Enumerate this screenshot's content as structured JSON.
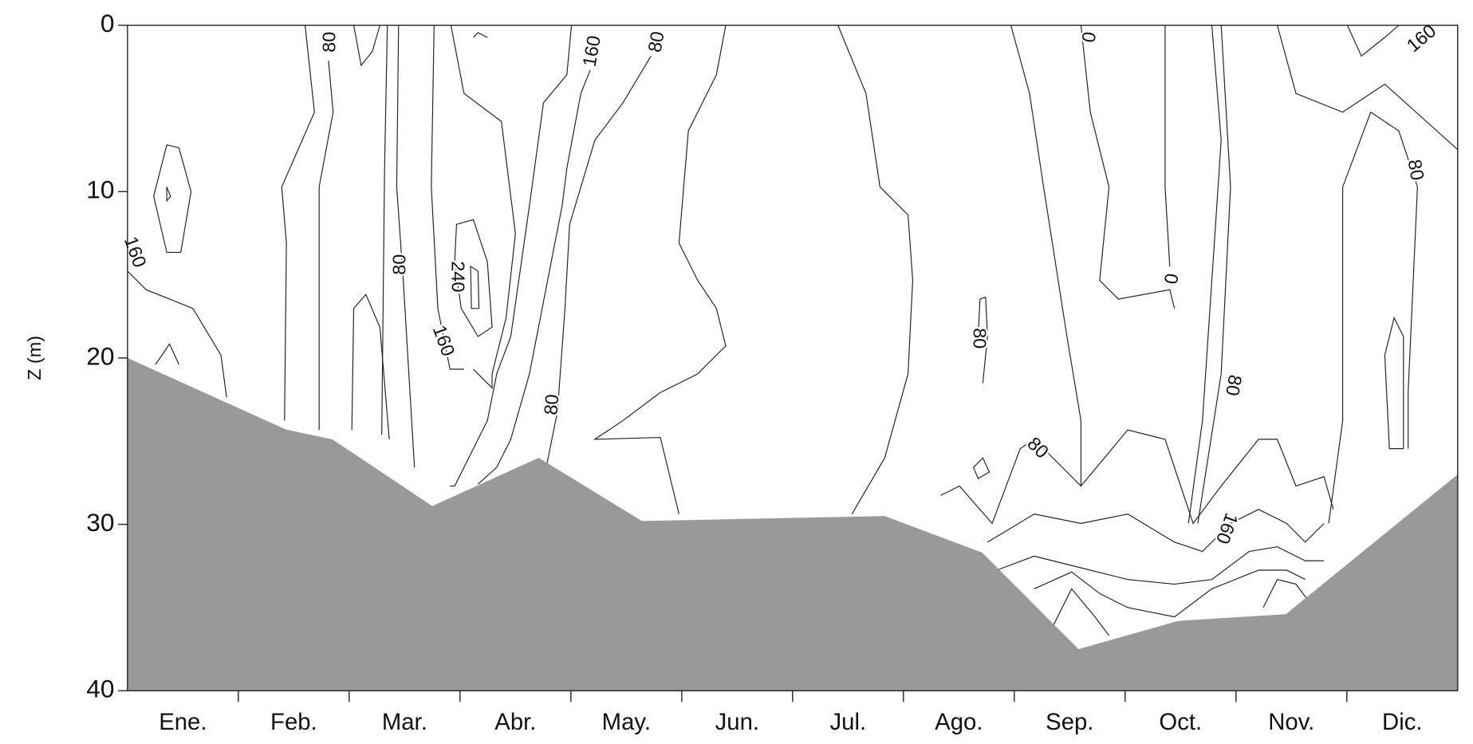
{
  "chart_data": {
    "type": "contour",
    "ylabel": "Z (m)",
    "categories": [
      "Ene.",
      "Feb.",
      "Mar.",
      "Abr.",
      "May.",
      "Jun.",
      "Jul.",
      "Ago.",
      "Sep.",
      "Oct.",
      "Nov.",
      "Dic."
    ],
    "x": [
      0,
      1.43,
      1.85,
      2.75,
      3.71,
      4.64,
      6.83,
      7.71,
      8.58,
      9.48,
      10.45,
      12
    ],
    "values": [
      20,
      24.3,
      24.9,
      28.9,
      26,
      29.8,
      29.5,
      31.7,
      37.5,
      35.8,
      35.4,
      27
    ],
    "color": "#999999",
    "xlim": [
      0,
      12
    ],
    "ylim": [
      0,
      40
    ],
    "y_inverted": true,
    "yticks": [
      0,
      10,
      20,
      30,
      40
    ],
    "contour_labels": [
      80,
      160,
      80,
      0,
      160,
      80,
      160,
      80,
      240,
      160,
      0,
      80,
      80,
      80,
      80,
      160
    ]
  }
}
